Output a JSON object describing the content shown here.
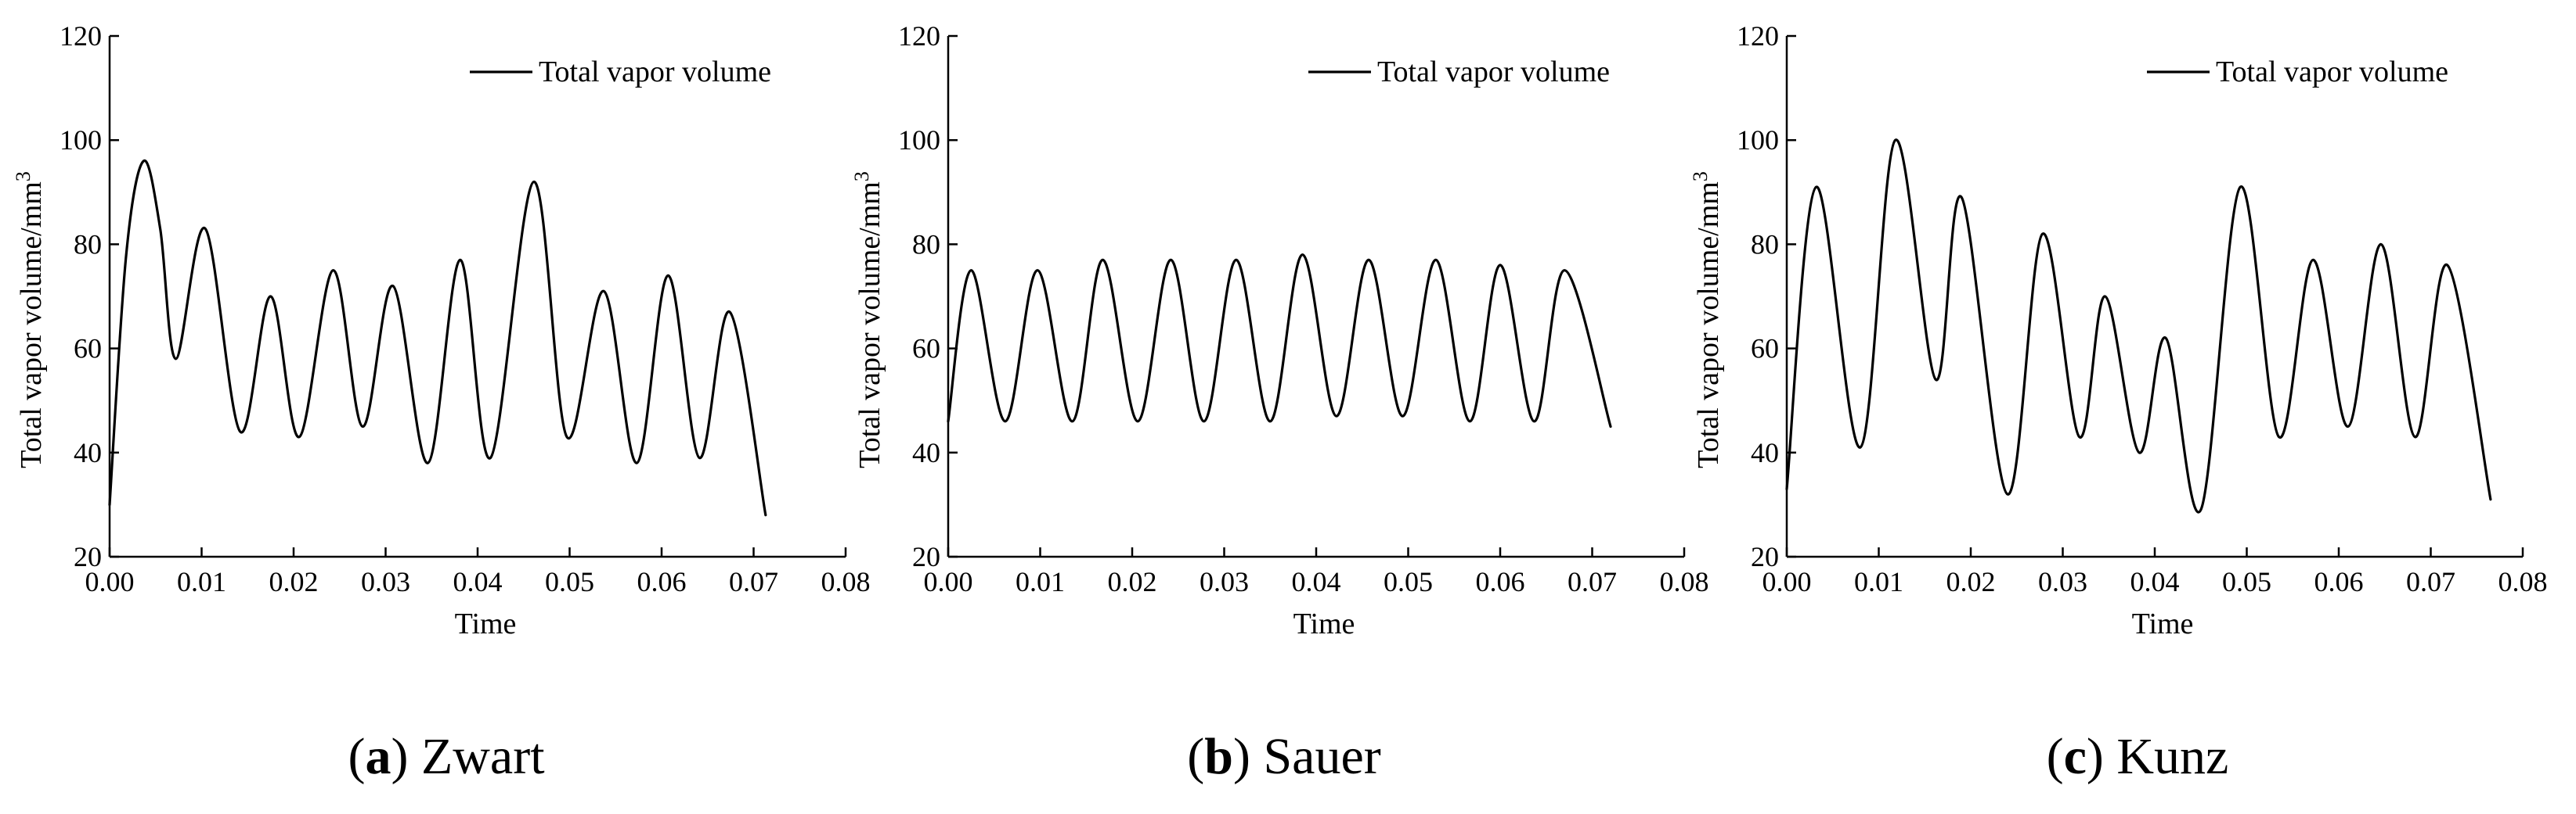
{
  "chart_data": [
    {
      "type": "line",
      "panel": "a",
      "scheme": "Zwart",
      "xlabel": "Time",
      "ylabel": "Total vapor volume/mm",
      "ylabel_superscript": "3",
      "xlim": [
        0,
        0.08
      ],
      "ylim": [
        20,
        120
      ],
      "xticks": [
        "0.00",
        "0.01",
        "0.02",
        "0.03",
        "0.04",
        "0.05",
        "0.06",
        "0.07",
        "0.08"
      ],
      "yticks": [
        "20",
        "40",
        "60",
        "80",
        "100",
        "120"
      ],
      "legend": "top-right",
      "series": [
        {
          "name": "Total vapor volume",
          "color": "#000000",
          "x": [
            0.0,
            0.0018,
            0.0037,
            0.0055,
            0.0072,
            0.0104,
            0.0142,
            0.0175,
            0.0206,
            0.0243,
            0.0275,
            0.0308,
            0.0346,
            0.0381,
            0.0414,
            0.0461,
            0.0497,
            0.0537,
            0.0573,
            0.0607,
            0.0641,
            0.0674,
            0.0713
          ],
          "y": [
            30,
            78,
            96,
            83,
            58,
            83,
            44,
            70,
            43,
            75,
            45,
            72,
            38,
            77,
            39,
            92,
            43,
            71,
            38,
            74,
            39,
            67,
            28
          ]
        }
      ]
    },
    {
      "type": "line",
      "panel": "b",
      "scheme": "Sauer",
      "xlabel": "Time",
      "ylabel": "Total vapor volume/mm",
      "ylabel_superscript": "3",
      "xlim": [
        0,
        0.08
      ],
      "ylim": [
        20,
        120
      ],
      "xticks": [
        "0.00",
        "0.01",
        "0.02",
        "0.03",
        "0.04",
        "0.05",
        "0.06",
        "0.07",
        "0.08"
      ],
      "yticks": [
        "20",
        "40",
        "60",
        "80",
        "100",
        "120"
      ],
      "legend": "top-right",
      "series": [
        {
          "name": "Total vapor volume",
          "color": "#000000",
          "x": [
            0.0,
            0.0025,
            0.0062,
            0.0097,
            0.0135,
            0.0168,
            0.0206,
            0.0242,
            0.0278,
            0.0313,
            0.035,
            0.0385,
            0.0422,
            0.0457,
            0.0494,
            0.053,
            0.0567,
            0.06,
            0.0637,
            0.067,
            0.072
          ],
          "y": [
            46,
            75,
            46,
            75,
            46,
            77,
            46,
            77,
            46,
            77,
            46,
            78,
            47,
            77,
            47,
            77,
            46,
            76,
            46,
            75,
            45
          ]
        }
      ]
    },
    {
      "type": "line",
      "panel": "c",
      "scheme": "Kunz",
      "xlabel": "Time",
      "ylabel": "Total vapor volume/mm",
      "ylabel_superscript": "3",
      "xlim": [
        0,
        0.08
      ],
      "ylim": [
        20,
        120
      ],
      "xticks": [
        "0.00",
        "0.01",
        "0.02",
        "0.03",
        "0.04",
        "0.05",
        "0.06",
        "0.07",
        "0.08"
      ],
      "yticks": [
        "20",
        "40",
        "60",
        "80",
        "100",
        "120"
      ],
      "legend": "top-right",
      "series": [
        {
          "name": "Total vapor volume",
          "color": "#000000",
          "x": [
            0.0,
            0.0032,
            0.008,
            0.0118,
            0.0162,
            0.019,
            0.024,
            0.0278,
            0.0318,
            0.0346,
            0.0383,
            0.0412,
            0.045,
            0.0493,
            0.0535,
            0.0572,
            0.061,
            0.0646,
            0.0683,
            0.0718,
            0.0765
          ],
          "y": [
            33,
            91,
            41,
            100,
            54,
            89,
            32,
            82,
            43,
            70,
            40,
            62,
            29,
            91,
            43,
            77,
            45,
            80,
            43,
            76,
            31
          ]
        }
      ]
    }
  ],
  "captions": [
    {
      "letter": "a",
      "name": "Zwart"
    },
    {
      "letter": "b",
      "name": "Sauer"
    },
    {
      "letter": "c",
      "name": "Kunz"
    }
  ]
}
